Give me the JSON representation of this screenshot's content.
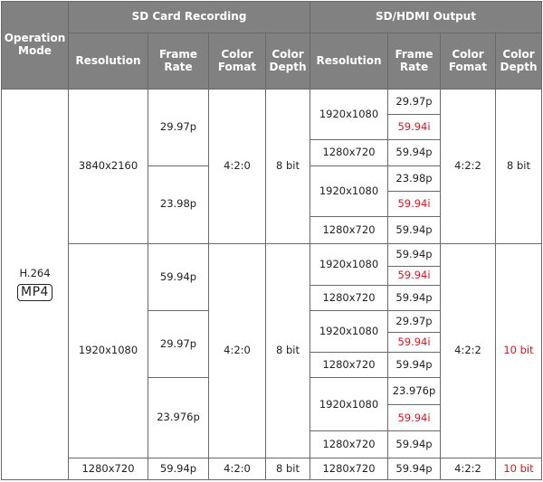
{
  "headers": {
    "operation_mode": "Operation Mode",
    "sd_group": "SD Card Recording",
    "out_group": "SD/HDMI Output",
    "resolution": "Resolution",
    "frame_rate": "Frame Rate",
    "color_format": "Color Fomat",
    "color_depth": "Color Depth"
  },
  "mode": {
    "codec": "H.264",
    "container": "MP4"
  },
  "rows": {
    "b1": {
      "resolution": "3840x2160",
      "color_format": "4:2:0",
      "color_depth": "8 bit",
      "out_color_format": "4:2:2",
      "out_color_depth": "8 bit",
      "rates": [
        {
          "fr": "29.97p",
          "out": [
            {
              "res": "1920x1080",
              "rates": [
                "29.97p",
                "59.94i"
              ]
            },
            {
              "res": "1280x720",
              "rates": [
                "59.94p"
              ]
            }
          ]
        },
        {
          "fr": "23.98p",
          "out": [
            {
              "res": "1920x1080",
              "rates": [
                "23.98p",
                "59.94i"
              ]
            },
            {
              "res": "1280x720",
              "rates": [
                "59.94p"
              ]
            }
          ]
        }
      ]
    },
    "b2": {
      "resolution": "1920x1080",
      "color_format": "4:2:0",
      "color_depth": "8 bit",
      "out_color_format": "4:2:2",
      "out_color_depth": "10 bit",
      "rates": [
        {
          "fr": "59.94p",
          "out": [
            {
              "res": "1920x1080",
              "rates": [
                "59.94p",
                "59.94i"
              ]
            },
            {
              "res": "1280x720",
              "rates": [
                "59.94p"
              ]
            }
          ]
        },
        {
          "fr": "29.97p",
          "out": [
            {
              "res": "1920x1080",
              "rates": [
                "29.97p",
                "59.94i"
              ]
            },
            {
              "res": "1280x720",
              "rates": [
                "59.94p"
              ]
            }
          ]
        },
        {
          "fr": "23.976p",
          "out": [
            {
              "res": "1920x1080",
              "rates": [
                "23.976p",
                "59.94i"
              ]
            },
            {
              "res": "1280x720",
              "rates": [
                "59.94p"
              ]
            }
          ]
        }
      ]
    },
    "b3": {
      "resolution": "1280x720",
      "frame_rate": "59.94p",
      "color_format": "4:2:0",
      "color_depth": "8 bit",
      "out_resolution": "1280x720",
      "out_frame_rate": "59.94p",
      "out_color_format": "4:2:2",
      "out_color_depth": "10 bit"
    }
  },
  "colors": {
    "header_bg": "#818181",
    "highlight": "#d71920",
    "border": "#6a6a6a"
  }
}
